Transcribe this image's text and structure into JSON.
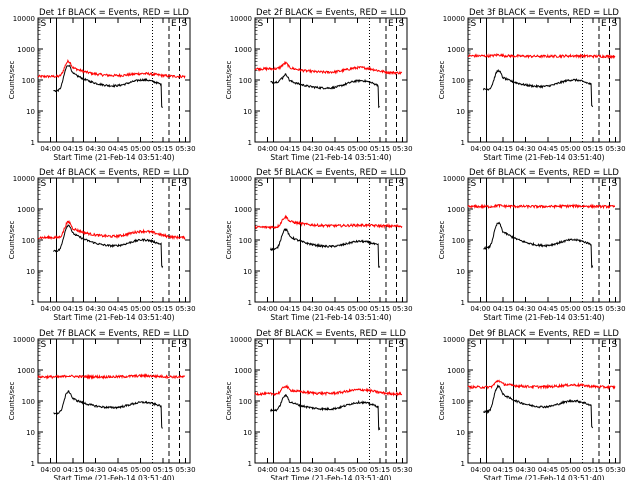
{
  "chart_data": {
    "type": "line",
    "shared": {
      "xlabel": "Start Time (21-Feb-14 03:51:40)",
      "ylabel": "Counts/sec",
      "x_range": [
        "03:51:40",
        "05:33:00"
      ],
      "ylim": [
        1,
        10000
      ],
      "y_scale": "log",
      "x_ticks": [
        "04:00",
        "04:15",
        "04:30",
        "04:45",
        "05:00",
        "05:15",
        "05:30"
      ],
      "y_ticks": [
        "1",
        "10",
        "100",
        "1000",
        "10000"
      ],
      "event_lines": [
        {
          "time": "04:04",
          "style": "solid"
        },
        {
          "time": "04:22",
          "style": "solid"
        },
        {
          "time": "05:08",
          "style": "dotted"
        },
        {
          "time": "05:19",
          "style": "dashed"
        },
        {
          "time": "05:26",
          "style": "dashed"
        }
      ],
      "markers": [
        {
          "time": "03:52",
          "label": "S"
        },
        {
          "time": "05:19",
          "label": "E"
        },
        {
          "time": "05:26",
          "label": "S"
        }
      ],
      "series_colors": {
        "events": "#000000",
        "lld": "#ff0000"
      },
      "black_start_time": "04:02",
      "black_end_time": "05:15",
      "red_end_time": "05:30"
    },
    "panels": [
      {
        "title": "Det 1f BLACK = Events, RED = LLD",
        "events": {
          "base": 45,
          "peak": 300,
          "trough": 55,
          "hump": 100
        },
        "lld": {
          "base": 130,
          "peak": 400,
          "trough": 130,
          "hump": 160
        }
      },
      {
        "title": "Det 2f BLACK = Events, RED = LLD",
        "events": {
          "base": 85,
          "peak": 150,
          "trough": 50,
          "hump": 95
        },
        "lld": {
          "base": 230,
          "peak": 350,
          "trough": 170,
          "hump": 250
        }
      },
      {
        "title": "Det 3f BLACK = Events, RED = LLD",
        "events": {
          "base": 50,
          "peak": 200,
          "trough": 55,
          "hump": 100
        },
        "lld": {
          "base": 600,
          "peak": 650,
          "trough": 580,
          "hump": 600
        }
      },
      {
        "title": "Det 4f BLACK = Events, RED = LLD",
        "events": {
          "base": 45,
          "peak": 300,
          "trough": 55,
          "hump": 100
        },
        "lld": {
          "base": 120,
          "peak": 380,
          "trough": 120,
          "hump": 190
        }
      },
      {
        "title": "Det 5f BLACK = Events, RED = LLD",
        "events": {
          "base": 50,
          "peak": 220,
          "trough": 55,
          "hump": 90
        },
        "lld": {
          "base": 260,
          "peak": 550,
          "trough": 280,
          "hump": 300
        }
      },
      {
        "title": "Det 6f BLACK = Events, RED = LLD",
        "events": {
          "base": 55,
          "peak": 350,
          "trough": 55,
          "hump": 100
        },
        "lld": {
          "base": 1200,
          "peak": 1300,
          "trough": 1200,
          "hump": 1250
        }
      },
      {
        "title": "Det 7f BLACK = Events, RED = LLD",
        "events": {
          "base": 40,
          "peak": 200,
          "trough": 55,
          "hump": 90
        },
        "lld": {
          "base": 600,
          "peak": 650,
          "trough": 600,
          "hump": 650
        }
      },
      {
        "title": "Det 8f BLACK = Events, RED = LLD",
        "events": {
          "base": 50,
          "peak": 150,
          "trough": 50,
          "hump": 90
        },
        "lld": {
          "base": 170,
          "peak": 300,
          "trough": 170,
          "hump": 230
        }
      },
      {
        "title": "Det 9f BLACK = Events, RED = LLD",
        "events": {
          "base": 45,
          "peak": 300,
          "trough": 55,
          "hump": 100
        },
        "lld": {
          "base": 280,
          "peak": 450,
          "trough": 280,
          "hump": 330
        }
      }
    ]
  }
}
